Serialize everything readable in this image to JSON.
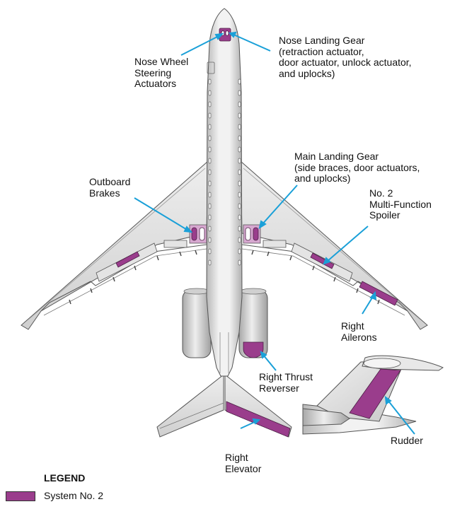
{
  "colors": {
    "system_no_2": "#9a3d8c",
    "leader": "#1aa0d8",
    "structure_fill": "#dcdcdc",
    "structure_line": "#555555"
  },
  "callouts": {
    "nose_wheel_steering": "Nose Wheel\nSteering\nActuators",
    "nose_landing_gear": "Nose Landing Gear\n(retraction actuator,\ndoor actuator, unlock actuator,\nand uplocks)",
    "main_landing_gear": "Main Landing Gear\n(side braces, door actuators,\nand uplocks)",
    "outboard_brakes": "Outboard\nBrakes",
    "mfs": "No. 2\nMulti-Function\nSpoiler",
    "right_ailerons": "Right\nAilerons",
    "right_thrust_reverser": "Right Thrust\nReverser",
    "right_elevator": "Right\nElevator",
    "rudder": "Rudder"
  },
  "legend": {
    "title": "LEGEND",
    "items": [
      {
        "label": "System No. 2",
        "color": "#9a3d8c"
      }
    ]
  }
}
